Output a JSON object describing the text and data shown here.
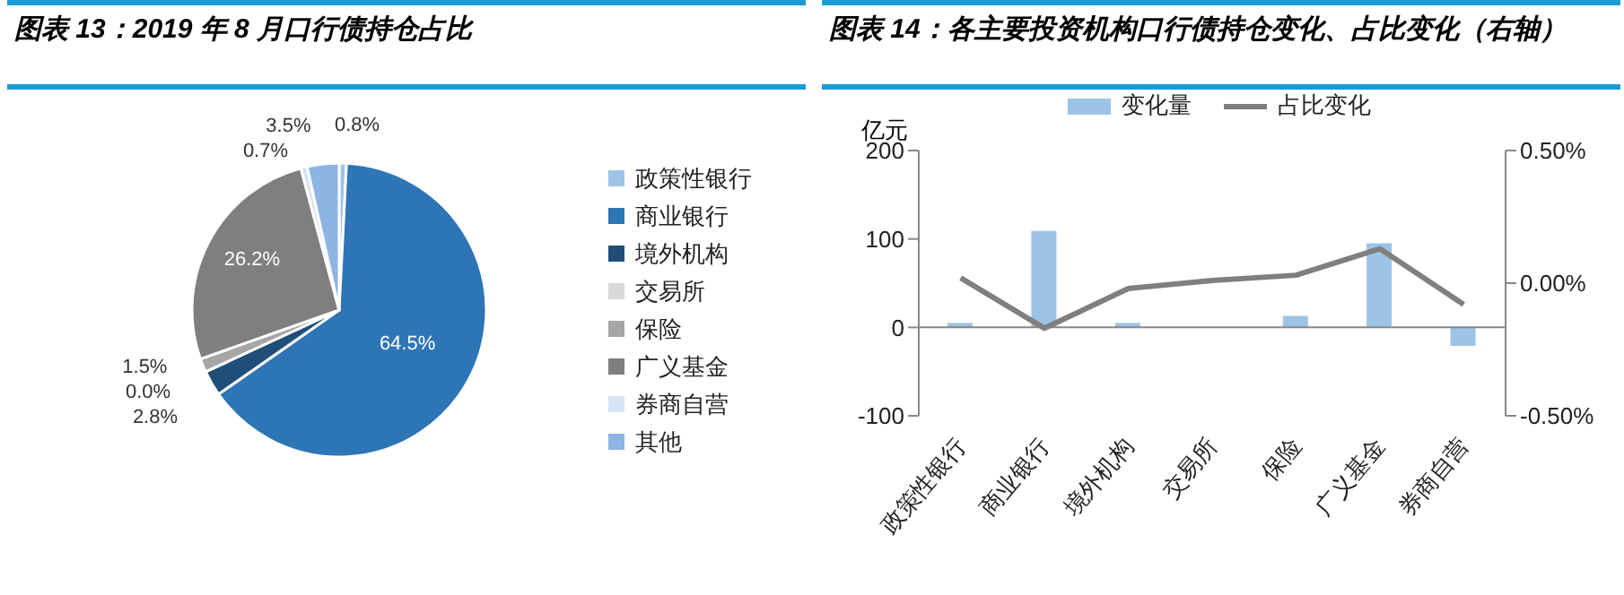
{
  "chart_data": [
    {
      "type": "pie",
      "title": "图表 13：2019 年 8 月口行债持仓占比",
      "categories": [
        "政策性银行",
        "商业银行",
        "境外机构",
        "交易所",
        "保险",
        "广义基金",
        "券商自营",
        "其他"
      ],
      "values": [
        0.8,
        64.5,
        2.8,
        0.0,
        1.5,
        26.2,
        0.7,
        3.5
      ],
      "colors": [
        "#9dc3e6",
        "#2e75b6",
        "#1f4e79",
        "#d9d9d9",
        "#a6a6a6",
        "#7f7f7f",
        "#d6e4f5",
        "#8eb4e3"
      ],
      "value_labels": [
        "0.8%",
        "64.5%",
        "2.8%",
        "0.0%",
        "1.5%",
        "26.2%",
        "0.7%",
        "3.5%"
      ],
      "legend": "right"
    },
    {
      "type": "bar",
      "title": "图表 14：各主要投资机构口行债持仓变化、占比变化（右轴）",
      "ylabel": "亿元",
      "categories": [
        "政策性银行",
        "商业银行",
        "境外机构",
        "交易所",
        "保险",
        "广义基金",
        "券商自营"
      ],
      "series": [
        {
          "name": "变化量",
          "type": "bar",
          "color": "#9dc3e6",
          "values": [
            5,
            109,
            5,
            0,
            13,
            95,
            -21
          ]
        },
        {
          "name": "占比变化",
          "type": "line",
          "axis": "y2",
          "color": "#7f7f7f",
          "values": [
            0.02,
            -0.17,
            -0.02,
            0.01,
            0.03,
            0.13,
            -0.08
          ]
        }
      ],
      "ylim": [
        -100,
        200
      ],
      "yticks": [
        -100,
        0,
        100,
        200
      ],
      "y2lim": [
        -0.5,
        0.5
      ],
      "y2ticks": [
        {
          "value": -0.5,
          "label": "-0.50%"
        },
        {
          "value": 0,
          "label": "0.00%"
        },
        {
          "value": 0.5,
          "label": "0.50%"
        }
      ],
      "legend": "top",
      "marker": "none"
    }
  ]
}
